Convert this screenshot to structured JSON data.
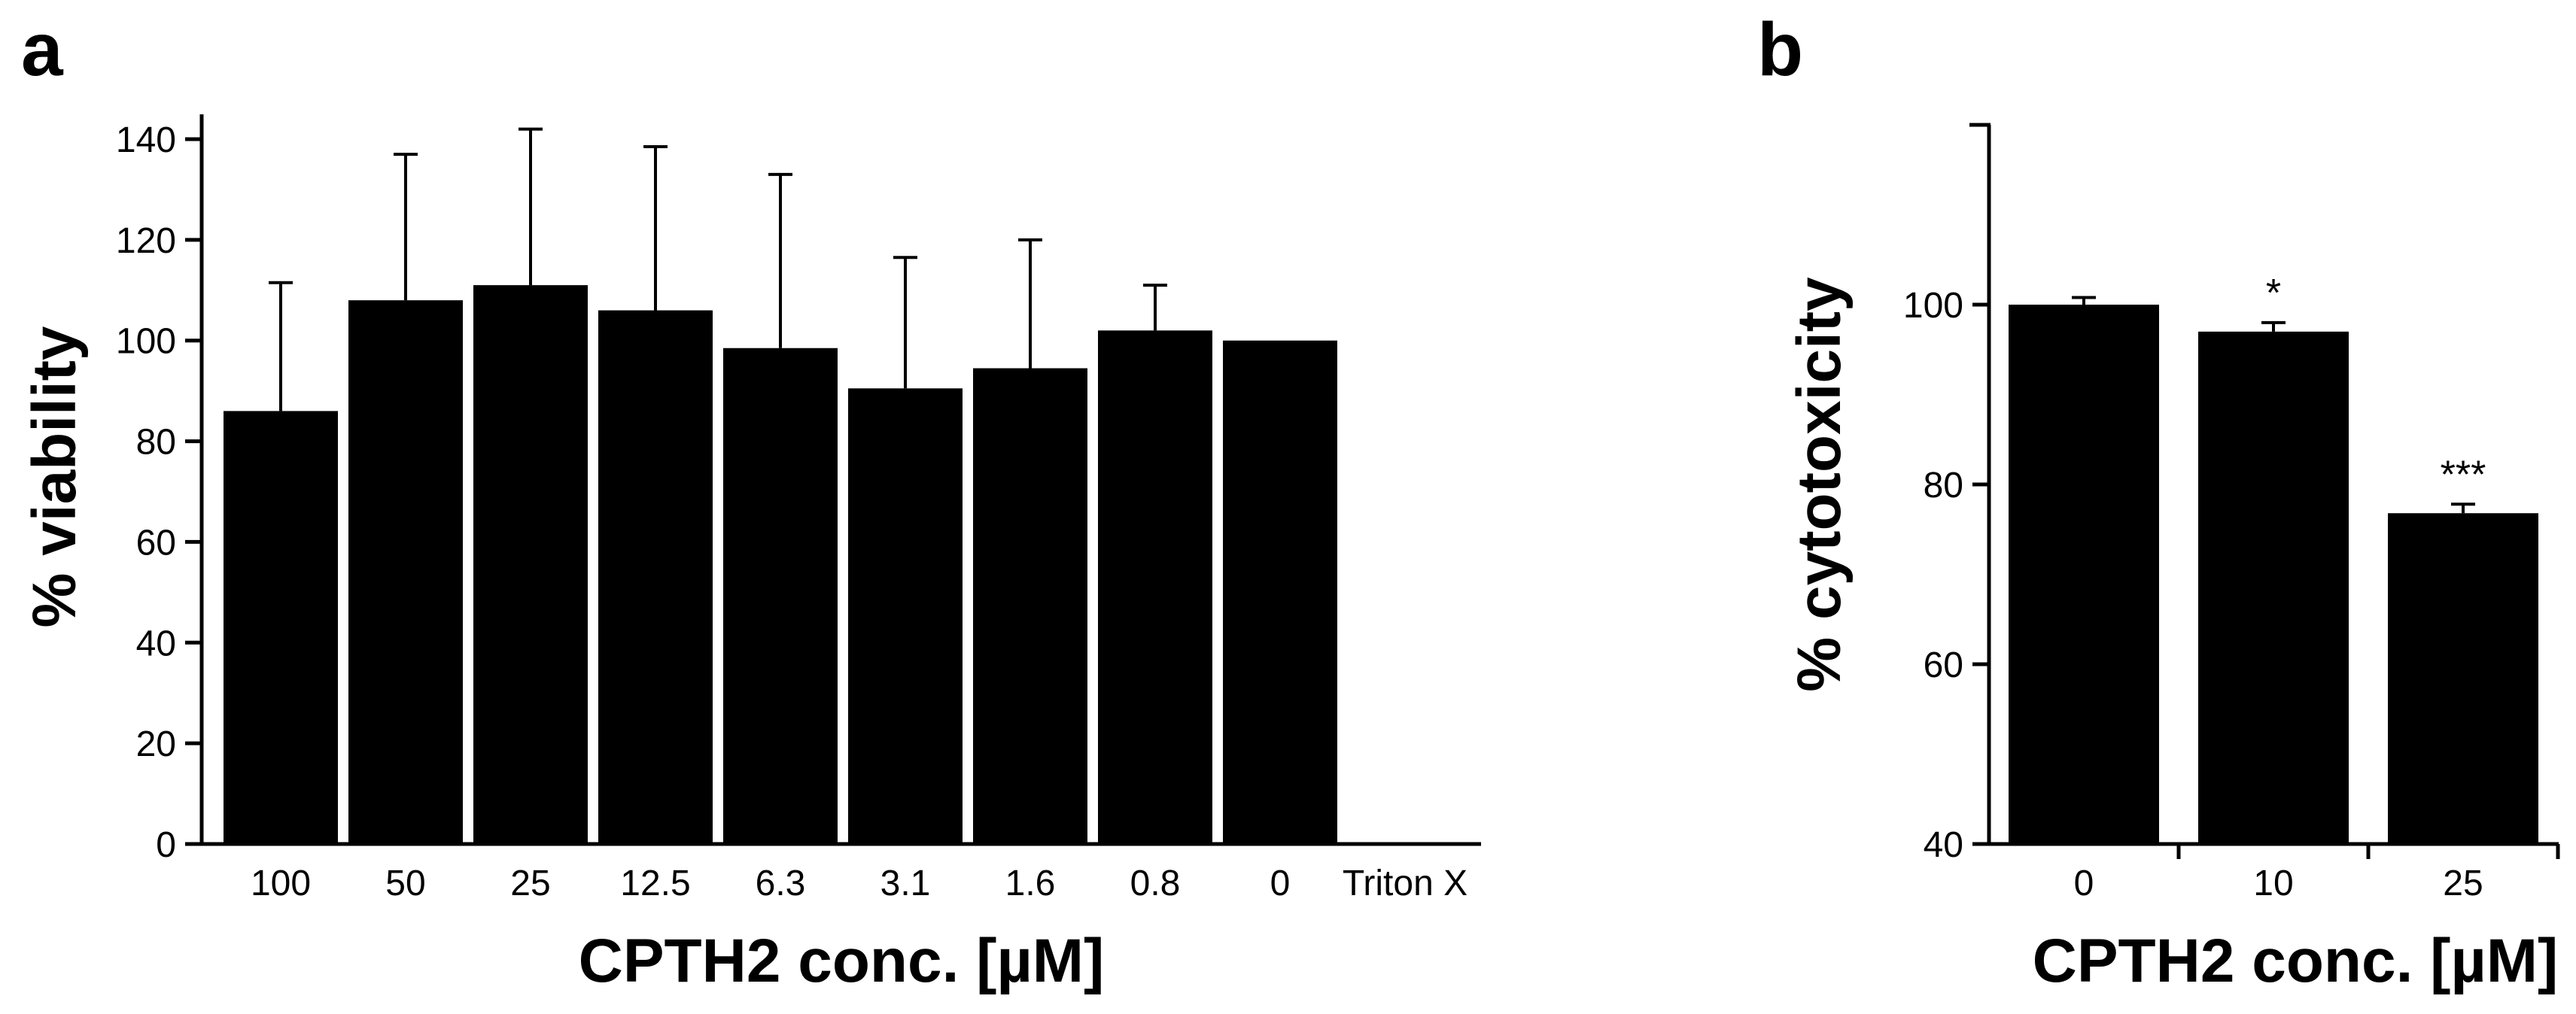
{
  "chart_data": [
    {
      "panel": "a",
      "type": "bar",
      "categories": [
        "100",
        "50",
        "25",
        "12.5",
        "6.3",
        "3.1",
        "1.6",
        "0.8",
        "0",
        "Triton X"
      ],
      "values": [
        86,
        108,
        111,
        106,
        98.5,
        90.5,
        94.5,
        102,
        100,
        0
      ],
      "error_upper": [
        111.5,
        137,
        142,
        138.5,
        133,
        116.5,
        120,
        111,
        null,
        null
      ],
      "xlabel": "CPTH2 conc. [µM]",
      "ylabel": "% viability",
      "ylim": [
        0,
        140
      ],
      "yticks": [
        0,
        20,
        40,
        60,
        80,
        100,
        120,
        140
      ],
      "grid": false,
      "bar_color": "#000000"
    },
    {
      "panel": "b",
      "type": "bar",
      "categories": [
        "0",
        "10",
        "25"
      ],
      "values": [
        100,
        97,
        76.8
      ],
      "error_upper": [
        100.8,
        98,
        77.8
      ],
      "significance": [
        "",
        "*",
        "***"
      ],
      "xlabel": "CPTH2 conc. [µM]",
      "ylabel": "% cytotoxicity",
      "ylim": [
        40,
        120
      ],
      "yticks": [
        40,
        60,
        80,
        100
      ],
      "grid": false,
      "bar_color": "#000000"
    }
  ]
}
